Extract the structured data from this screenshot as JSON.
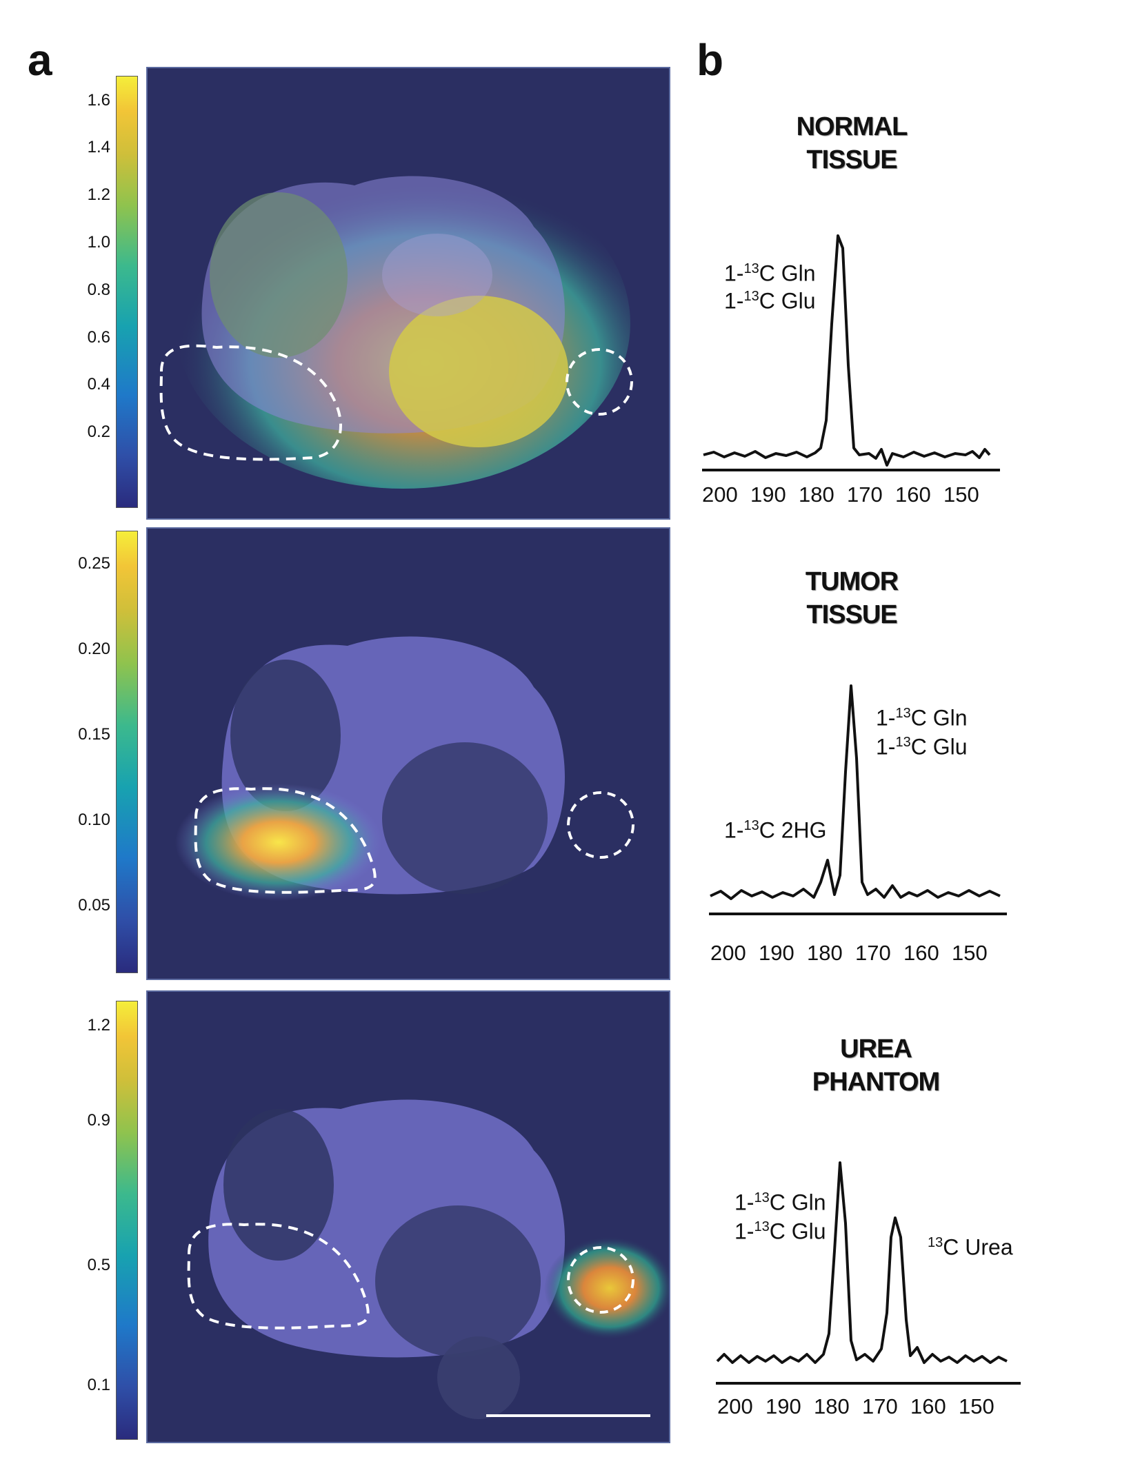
{
  "panels": {
    "a": "a",
    "b": "b"
  },
  "colorbars": [
    {
      "ticks": [
        "1.6",
        "1.4",
        "1.2",
        "1.0",
        "0.8",
        "0.6",
        "0.4",
        "0.2"
      ]
    },
    {
      "ticks": [
        "0.25",
        "0.20",
        "0.15",
        "0.10",
        "0.05"
      ]
    },
    {
      "ticks": [
        "1.2",
        "0.9",
        "0.5",
        "0.1"
      ]
    }
  ],
  "spectra": [
    {
      "title_line1": "NORMAL",
      "title_line2": "TISSUE",
      "axis": [
        "200",
        "190",
        "180",
        "170",
        "160",
        "150"
      ],
      "labels": [
        {
          "prefix": "1-",
          "iso": "13",
          "name": "C Gln"
        },
        {
          "prefix": "1-",
          "iso": "13",
          "name": "C Glu"
        }
      ]
    },
    {
      "title_line1": "TUMOR",
      "title_line2": "TISSUE",
      "axis": [
        "200",
        "190",
        "180",
        "170",
        "160",
        "150"
      ],
      "labels": [
        {
          "prefix": "1-",
          "iso": "13",
          "name": "C Gln"
        },
        {
          "prefix": "1-",
          "iso": "13",
          "name": "C Glu"
        },
        {
          "prefix": "1-",
          "iso": "13",
          "name": "C 2HG"
        }
      ]
    },
    {
      "title_line1": "UREA",
      "title_line2": "PHANTOM",
      "axis": [
        "200",
        "190",
        "180",
        "170",
        "160",
        "150"
      ],
      "labels": [
        {
          "prefix": "1-",
          "iso": "13",
          "name": "C Gln"
        },
        {
          "prefix": "1-",
          "iso": "13",
          "name": "C Glu"
        },
        {
          "prefix": "",
          "iso": "13",
          "name": "C Urea"
        }
      ]
    }
  ],
  "colors": {
    "background": "#2b2f62",
    "tissue": "#7b78d6",
    "hot": "#f5d23a",
    "dashed_roi": "#ffffff"
  }
}
